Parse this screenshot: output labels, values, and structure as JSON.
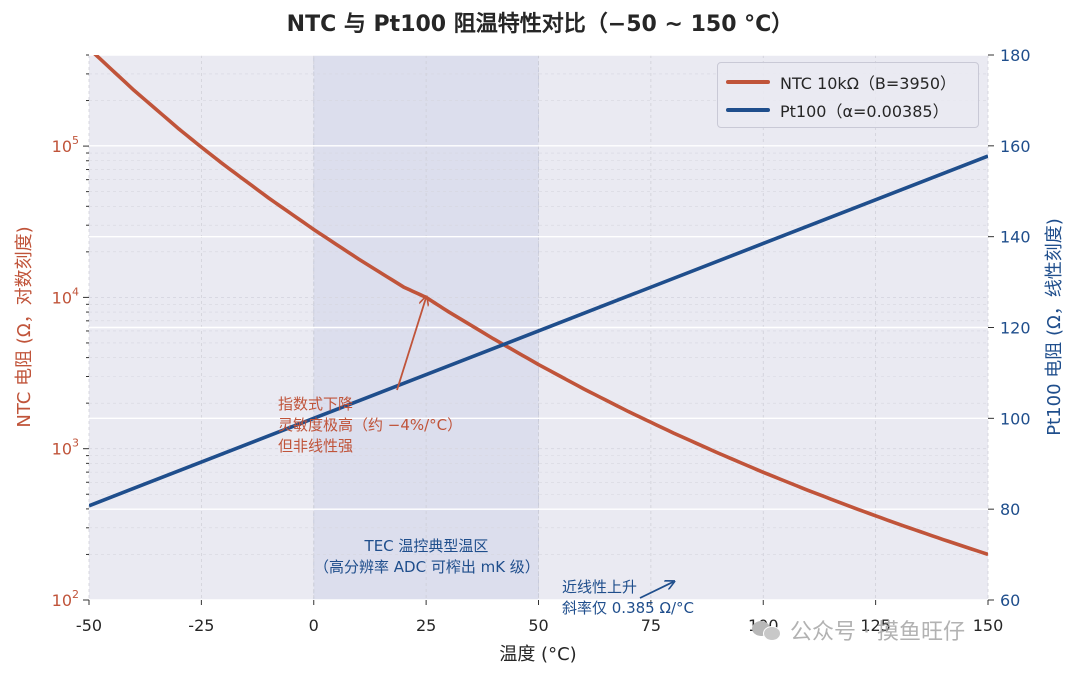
{
  "chart_data": {
    "type": "line",
    "title": "NTC 与 Pt100 阻温特性对比（−50 ~ 150 °C）",
    "xlabel": "温度 (°C)",
    "ylabel_left": "NTC 电阻 (Ω，对数刻度)",
    "ylabel_right": "Pt100 电阻 (Ω，线性刻度)",
    "xlim": [
      -50,
      150
    ],
    "ylim_left": [
      100,
      400000
    ],
    "ylim_right": [
      60,
      180
    ],
    "left_scale": "log",
    "x_ticks": [
      -50,
      -25,
      0,
      25,
      50,
      75,
      100,
      125,
      150
    ],
    "x_tick_labels": [
      "-50",
      "-25",
      "0",
      "25",
      "50",
      "75",
      "100",
      "125",
      "150"
    ],
    "left_ticks": [
      {
        "value": 100,
        "base": "10",
        "exp": "2"
      },
      {
        "value": 1000,
        "base": "10",
        "exp": "3"
      },
      {
        "value": 10000,
        "base": "10",
        "exp": "4"
      },
      {
        "value": 100000,
        "base": "10",
        "exp": "5"
      }
    ],
    "right_ticks": [
      60,
      80,
      100,
      120,
      140,
      160,
      180
    ],
    "right_tick_labels": [
      "60",
      "80",
      "100",
      "120",
      "140",
      "160",
      "180"
    ],
    "grid": true,
    "legend_position": "top-right",
    "series": [
      {
        "name": "NTC 10kΩ（B=3950）",
        "axis": "left",
        "color": "#c0543a",
        "x": [
          -50,
          -40,
          -30,
          -25,
          -20,
          -10,
          0,
          10,
          20,
          25,
          30,
          40,
          50,
          60,
          70,
          80,
          90,
          100,
          110,
          120,
          130,
          140,
          150
        ],
        "y": [
          441200,
          233900,
          129800,
          98400,
          75300,
          45300,
          28100,
          17900,
          11700,
          10000,
          8030,
          5320,
          3600,
          2490,
          1760,
          1270,
          935,
          698,
          530,
          408,
          318,
          251,
          200
        ]
      },
      {
        "name": "Pt100（α=0.00385）",
        "axis": "right",
        "color": "#1f4e8c",
        "x": [
          -50,
          0,
          50,
          100,
          150
        ],
        "y": [
          80.75,
          100.0,
          119.25,
          138.5,
          157.75
        ]
      }
    ],
    "shaded_region": {
      "x_start": 0,
      "x_end": 50,
      "label_line1": "TEC 温控典型温区",
      "label_line2": "（高分辨率 ADC 可榨出 mK 级）"
    },
    "annotations": {
      "ntc": {
        "lines": [
          "指数式下降",
          "灵敏度极高（约 −4%/°C）",
          "但非线性强"
        ],
        "arrow_to": {
          "x": 25,
          "y": 10000
        }
      },
      "pt100": {
        "lines": [
          "近线性上升",
          "斜率仅 0.385 Ω/°C"
        ],
        "arrow_to": {
          "x": 80,
          "y": 64
        }
      }
    }
  },
  "watermark": "公众号 · 摸鱼旺仔",
  "colors": {
    "ntc": "#c0543a",
    "pt100": "#1f4e8c",
    "plot_bg": "#eaeaf2",
    "shade": "#dcdeed"
  }
}
